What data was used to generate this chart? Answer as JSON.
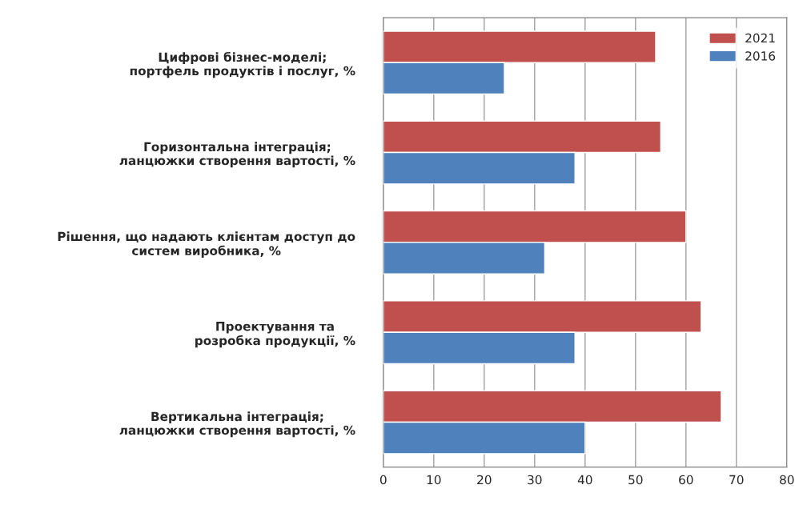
{
  "chart_data": {
    "type": "bar",
    "orientation": "horizontal",
    "categories": [
      "Цифрові бізнес-моделі;\nпортфель продуктів і послуг, %",
      "Горизонтальна інтеграція;\nланцюжки створення вартості, %",
      "Рішення, що надають клієнтам доступ до\nсистем виробника, %",
      "Проектування та\nрозробка продукції, %",
      "Вертикальна інтеграція;\nланцюжки створення вартості, %"
    ],
    "series": [
      {
        "name": "2021",
        "color": "#c0504d",
        "values": [
          54,
          55,
          60,
          63,
          67
        ]
      },
      {
        "name": "2016",
        "color": "#4f81bd",
        "values": [
          24,
          38,
          32,
          38,
          40
        ]
      }
    ],
    "xlim": [
      0,
      80
    ],
    "xticks": [
      0,
      10,
      20,
      30,
      40,
      50,
      60,
      70,
      80
    ],
    "grid": "x",
    "legend": "top right"
  }
}
